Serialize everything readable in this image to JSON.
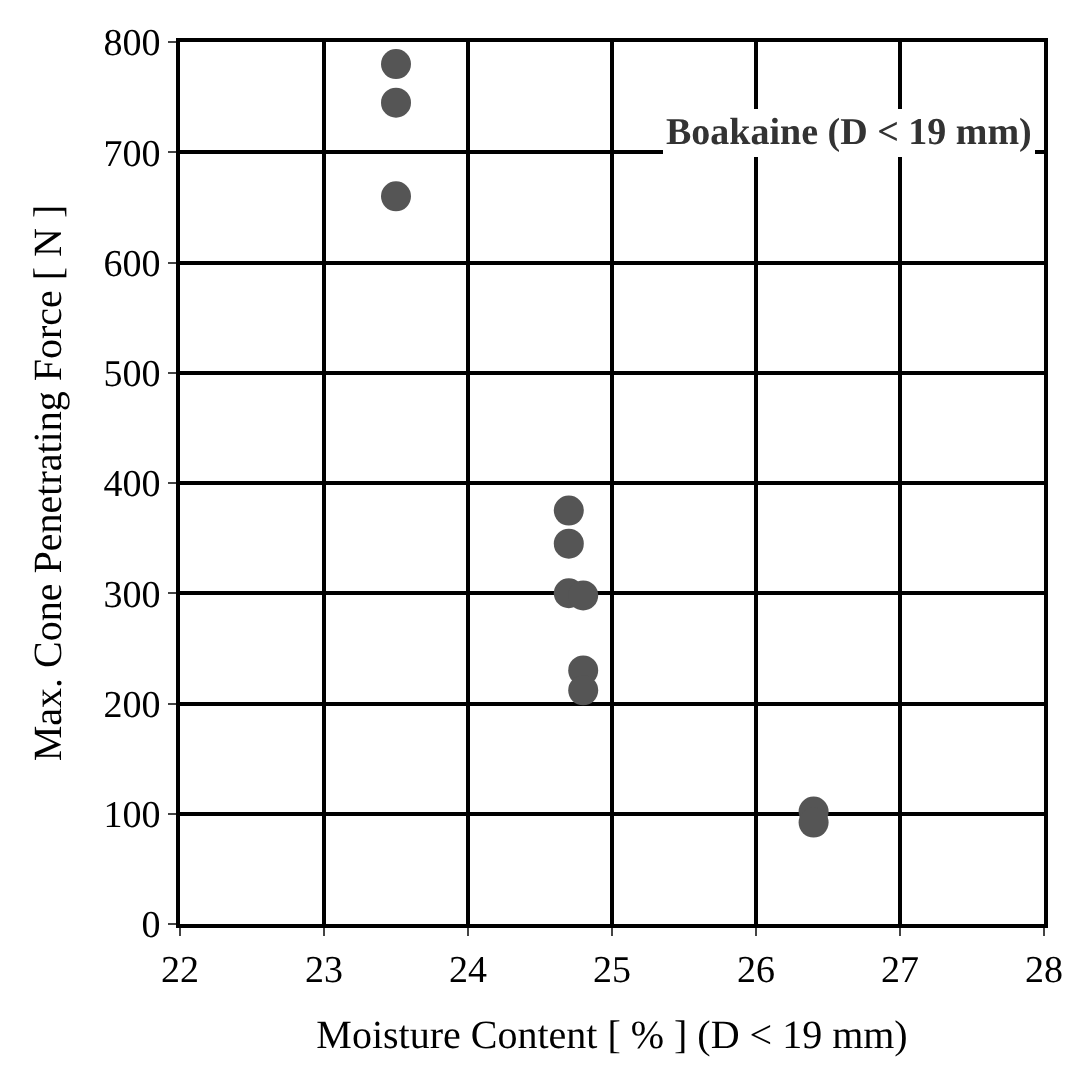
{
  "chart_data": {
    "type": "scatter",
    "xlabel": "Moisture Content [ % ] (D < 19 mm)",
    "ylabel": "Max. Cone Penetrating Force [ N ]",
    "x": [
      23.5,
      23.5,
      23.5,
      24.7,
      24.7,
      24.7,
      24.8,
      24.8,
      24.8,
      26.4,
      26.4
    ],
    "series": [
      {
        "color": "#555555",
        "values": [
          780,
          745,
          660,
          375,
          345,
          300,
          298,
          230,
          212,
          102,
          92
        ]
      }
    ],
    "xlim": [
      22,
      28
    ],
    "xticks": [
      22,
      23,
      24,
      25,
      26,
      27,
      28
    ],
    "ylim": [
      0,
      800
    ],
    "yticks": [
      0,
      100,
      200,
      300,
      400,
      500,
      600,
      700,
      800
    ],
    "grid": true,
    "marker": "circle",
    "annotations": [
      "Boakaine (D < 19 mm)"
    ]
  }
}
